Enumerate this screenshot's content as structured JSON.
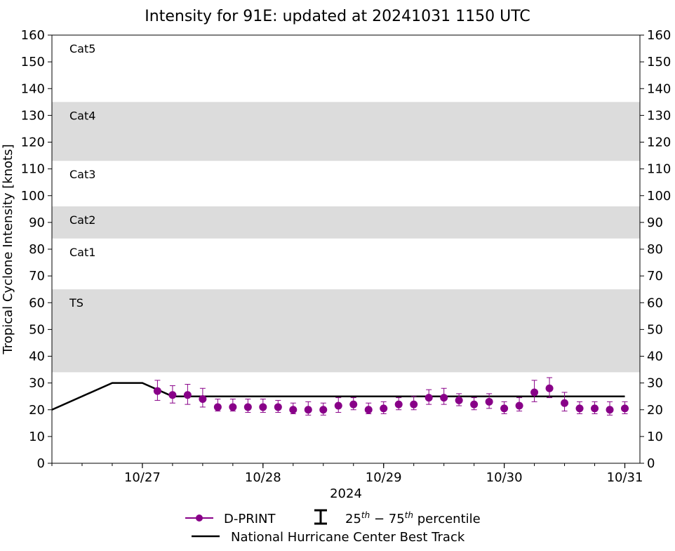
{
  "chart_data": {
    "type": "line",
    "title": "Intensity for 91E: updated at 20241031 1150 UTC",
    "xlabel": "2024",
    "ylabel": "Tropical Cyclone Intensity [knots]",
    "ylim": [
      0,
      160
    ],
    "yticks": [
      0,
      10,
      20,
      30,
      40,
      50,
      60,
      70,
      80,
      90,
      100,
      110,
      120,
      130,
      140,
      150,
      160
    ],
    "xlim_hours": [
      -18,
      99
    ],
    "xticks": [
      {
        "label": "10/27",
        "hour": 0
      },
      {
        "label": "10/28",
        "hour": 24
      },
      {
        "label": "10/29",
        "hour": 48
      },
      {
        "label": "10/30",
        "hour": 72
      },
      {
        "label": "10/31",
        "hour": 96
      }
    ],
    "minor_tick_step_hours": 6,
    "category_bands": [
      {
        "name": "TS",
        "low": 34,
        "high": 65,
        "shaded": true
      },
      {
        "name": "Cat1",
        "low": 65,
        "high": 84,
        "shaded": false
      },
      {
        "name": "Cat2",
        "low": 84,
        "high": 96,
        "shaded": true
      },
      {
        "name": "Cat3",
        "low": 96,
        "high": 113,
        "shaded": false
      },
      {
        "name": "Cat4",
        "low": 113,
        "high": 135,
        "shaded": true
      },
      {
        "name": "Cat5",
        "low": 135,
        "high": 160,
        "shaded": false
      }
    ],
    "band_color": "#dcdcdc",
    "series": [
      {
        "name": "National Hurricane Center Best Track",
        "color": "#000000",
        "hours": [
          -18,
          -6,
          0,
          6,
          96
        ],
        "values": [
          20,
          30,
          30,
          25,
          25
        ]
      },
      {
        "name": "D-PRINT",
        "color": "#880088",
        "hours": [
          3,
          6,
          9,
          12,
          15,
          18,
          21,
          24,
          27,
          30,
          33,
          36,
          39,
          42,
          45,
          48,
          51,
          54,
          57,
          60,
          63,
          66,
          69,
          72,
          75,
          78,
          81,
          84,
          87,
          90,
          93,
          96
        ],
        "values": [
          27,
          25.5,
          25.5,
          24,
          21,
          21,
          21,
          21,
          21,
          20,
          20,
          20,
          21.5,
          22,
          20,
          20.5,
          22,
          22,
          24.5,
          24.5,
          23.5,
          22,
          23,
          20.5,
          21.5,
          26.5,
          28,
          22.5,
          20.5,
          20.5,
          20,
          20.5
        ],
        "p25": [
          23.5,
          22.5,
          22,
          21,
          19.5,
          19.5,
          19,
          19,
          19,
          18.5,
          18,
          18,
          19,
          20,
          18.5,
          18.5,
          20,
          20,
          22,
          22,
          21.5,
          20,
          20.5,
          18.5,
          19.5,
          23,
          24.5,
          19.5,
          18.5,
          18.5,
          18,
          18.5
        ],
        "p75": [
          31,
          29,
          29.5,
          28,
          24,
          24,
          24,
          24,
          23.5,
          22.5,
          23,
          22.5,
          24.5,
          24.5,
          22.5,
          23,
          24.5,
          25,
          27.5,
          28,
          26,
          24.5,
          26,
          23,
          24.5,
          31,
          32,
          26.5,
          23,
          23,
          23,
          23
        ]
      }
    ],
    "legend": {
      "placement": "bottom-center",
      "entries": [
        {
          "label": "D-PRINT",
          "kind": "marker-line"
        },
        {
          "label": "25th − 75th percentile",
          "base1": "25",
          "sup1": "th",
          "mid": " − ",
          "base2": "75",
          "sup2": "th",
          "tail": " percentile",
          "kind": "errorbar"
        },
        {
          "label": "National Hurricane Center Best Track",
          "kind": "line"
        }
      ]
    }
  }
}
